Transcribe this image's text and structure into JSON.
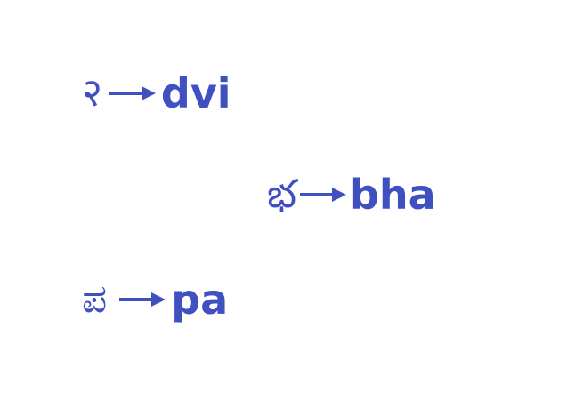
{
  "accent_color": "#4050c0",
  "mappings": [
    {
      "source": "२",
      "target": "dvi",
      "arrow_icon": "right-arrow-icon"
    },
    {
      "source": "భ",
      "target": "bha",
      "arrow_icon": "right-arrow-icon"
    },
    {
      "source": "ಪ",
      "target": "pa",
      "arrow_icon": "right-arrow-icon"
    }
  ]
}
